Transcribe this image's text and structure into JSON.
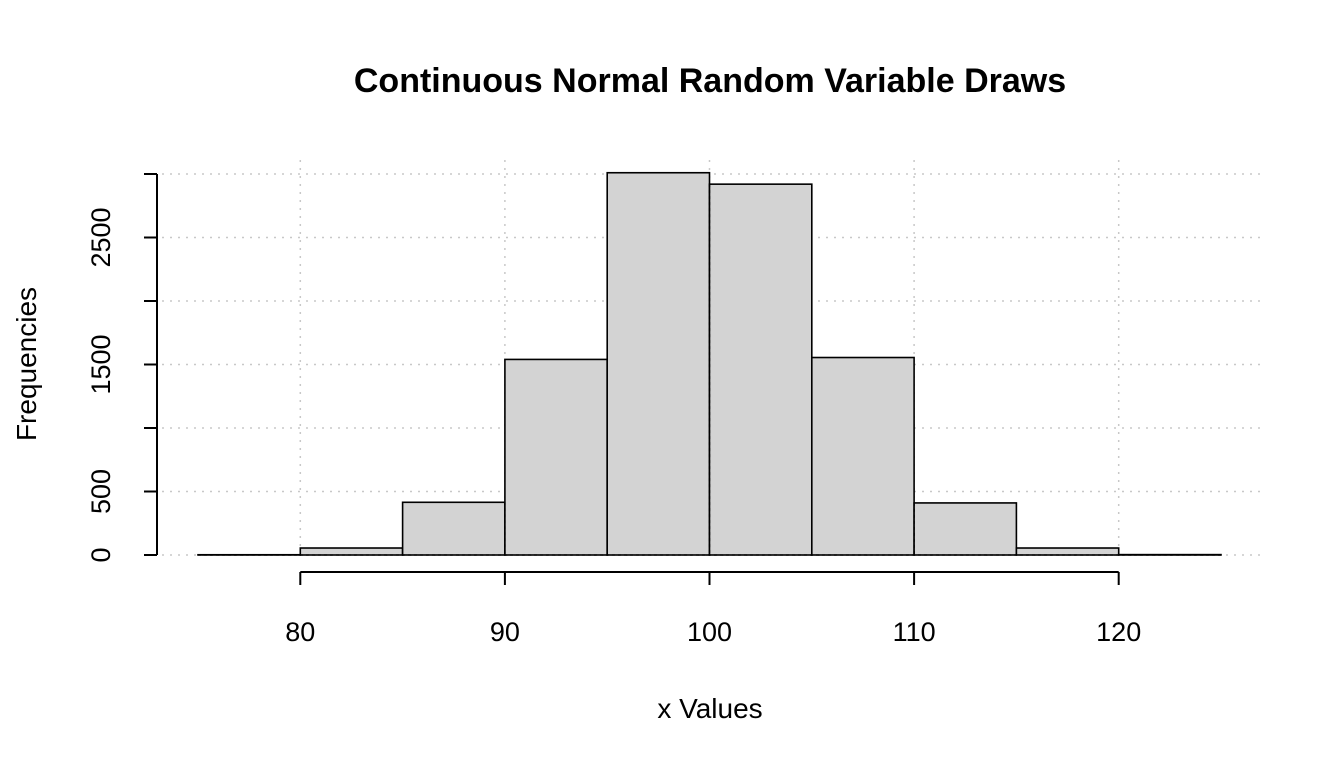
{
  "chart_data": {
    "type": "bar",
    "title": "Continuous Normal Random Variable Draws",
    "xlabel": "x Values",
    "ylabel": "Frequencies",
    "bin_edges": [
      75,
      80,
      85,
      90,
      95,
      100,
      105,
      110,
      115,
      120,
      125
    ],
    "values": [
      2,
      55,
      415,
      1540,
      3010,
      2920,
      1555,
      410,
      55,
      3
    ],
    "xlim": [
      75,
      125
    ],
    "ylim": [
      0,
      3000
    ],
    "x_ticks": [
      80,
      90,
      100,
      110,
      120
    ],
    "x_tick_labels": [
      "80",
      "90",
      "100",
      "110",
      "120"
    ],
    "y_ticks": [
      0,
      500,
      1000,
      1500,
      2000,
      2500,
      3000
    ],
    "y_tick_labels": [
      "0",
      "500",
      "",
      "1500",
      "",
      "2500",
      ""
    ],
    "x_grid": [
      80,
      90,
      100,
      110,
      120
    ],
    "grid": true,
    "colors": {
      "bar_fill": "#d3d3d3",
      "bar_stroke": "#000000",
      "grid": "#c8c8c8"
    }
  }
}
